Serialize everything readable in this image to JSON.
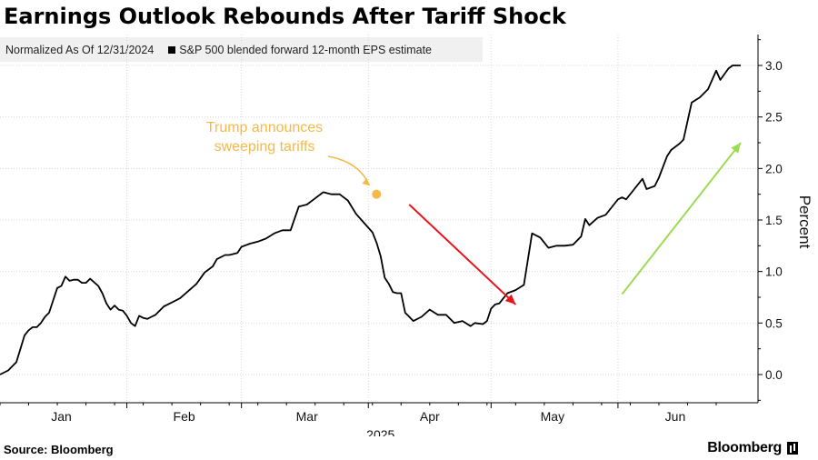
{
  "title": "Earnings Outlook Rebounds After Tariff Shock",
  "legend": {
    "normalization": "Normalized As Of 12/31/2024",
    "series_label": "S&P 500 blended forward 12-month EPS estimate"
  },
  "footer": {
    "source": "Source: Bloomberg",
    "brand": "Bloomberg"
  },
  "colors": {
    "line": "#000000",
    "annotation_orange": "#f5b94a",
    "arrow_red": "#e8141e",
    "arrow_green": "#9bdc52",
    "grid": "#d7d7d7"
  },
  "chart_data": {
    "type": "line",
    "title": "Earnings Outlook Rebounds After Tariff Shock",
    "ylabel": "Percent",
    "xlabel": "2025",
    "ylim": [
      -0.3,
      3.3
    ],
    "yticks": [
      "3.0",
      "2.5",
      "2.0",
      "1.5",
      "1.0",
      "0.5",
      "0.0"
    ],
    "ytick_values": [
      3.0,
      2.5,
      2.0,
      1.5,
      1.0,
      0.5,
      0.0
    ],
    "xlim": [
      "2024-12-31",
      "2025-06-30"
    ],
    "month_labels": [
      "Jan",
      "Feb",
      "Mar",
      "Apr",
      "May",
      "Jun"
    ],
    "month_label_dates": [
      "2025-01-15",
      "2025-02-14",
      "2025-03-16",
      "2025-04-15",
      "2025-05-15",
      "2025-06-14"
    ],
    "month_boundaries": [
      "2025-01-31",
      "2025-02-28",
      "2025-03-31",
      "2025-04-30",
      "2025-05-31"
    ],
    "year_label": "2025",
    "grid": true,
    "series": [
      {
        "name": "S&P 500 blended forward 12-month EPS estimate",
        "x": [
          "2024-12-31",
          "2025-01-02",
          "2025-01-03",
          "2025-01-04",
          "2025-01-05",
          "2025-01-06",
          "2025-01-07",
          "2025-01-08",
          "2025-01-09",
          "2025-01-10",
          "2025-01-11",
          "2025-01-12",
          "2025-01-13",
          "2025-01-14",
          "2025-01-15",
          "2025-01-16",
          "2025-01-17",
          "2025-01-18",
          "2025-01-19",
          "2025-01-20",
          "2025-01-21",
          "2025-01-22",
          "2025-01-24",
          "2025-01-25",
          "2025-01-26",
          "2025-01-27",
          "2025-01-28",
          "2025-01-29",
          "2025-01-30",
          "2025-01-31",
          "2025-02-01",
          "2025-02-02",
          "2025-02-03",
          "2025-02-04",
          "2025-02-05",
          "2025-02-06",
          "2025-02-07",
          "2025-02-09",
          "2025-02-11",
          "2025-02-13",
          "2025-02-15",
          "2025-02-17",
          "2025-02-19",
          "2025-02-21",
          "2025-02-22",
          "2025-02-24",
          "2025-02-25",
          "2025-02-27",
          "2025-02-28",
          "2025-03-02",
          "2025-03-04",
          "2025-03-06",
          "2025-03-08",
          "2025-03-10",
          "2025-03-12",
          "2025-03-14",
          "2025-03-16",
          "2025-03-18",
          "2025-03-20",
          "2025-03-22",
          "2025-03-24",
          "2025-03-26",
          "2025-03-28",
          "2025-03-30",
          "2025-04-01",
          "2025-04-02",
          "2025-04-03",
          "2025-04-04",
          "2025-04-05",
          "2025-04-06",
          "2025-04-07",
          "2025-04-08",
          "2025-04-09",
          "2025-04-10",
          "2025-04-11",
          "2025-04-13",
          "2025-04-15",
          "2025-04-17",
          "2025-04-19",
          "2025-04-21",
          "2025-04-23",
          "2025-04-25",
          "2025-04-26",
          "2025-04-28",
          "2025-04-29",
          "2025-04-30",
          "2025-05-01",
          "2025-05-02",
          "2025-05-04",
          "2025-05-06",
          "2025-05-08",
          "2025-05-10",
          "2025-05-12",
          "2025-05-14",
          "2025-05-16",
          "2025-05-18",
          "2025-05-20",
          "2025-05-22",
          "2025-05-23",
          "2025-05-24",
          "2025-05-26",
          "2025-05-28",
          "2025-05-30",
          "2025-05-31",
          "2025-06-01",
          "2025-06-02",
          "2025-06-04",
          "2025-06-06",
          "2025-06-07",
          "2025-06-09",
          "2025-06-10",
          "2025-06-12",
          "2025-06-13",
          "2025-06-15",
          "2025-06-16",
          "2025-06-18",
          "2025-06-20",
          "2025-06-22",
          "2025-06-24",
          "2025-06-25",
          "2025-06-27",
          "2025-06-28",
          "2025-06-29",
          "2025-06-30"
        ],
        "y": [
          0.0,
          0.04,
          0.08,
          0.12,
          0.25,
          0.38,
          0.43,
          0.46,
          0.46,
          0.5,
          0.56,
          0.6,
          0.72,
          0.84,
          0.86,
          0.95,
          0.91,
          0.92,
          0.92,
          0.89,
          0.89,
          0.93,
          0.86,
          0.79,
          0.69,
          0.63,
          0.67,
          0.63,
          0.62,
          0.57,
          0.5,
          0.47,
          0.57,
          0.55,
          0.54,
          0.56,
          0.58,
          0.66,
          0.7,
          0.74,
          0.81,
          0.88,
          0.99,
          1.05,
          1.12,
          1.16,
          1.16,
          1.18,
          1.24,
          1.27,
          1.29,
          1.32,
          1.37,
          1.4,
          1.4,
          1.63,
          1.65,
          1.71,
          1.77,
          1.75,
          1.75,
          1.69,
          1.56,
          1.47,
          1.38,
          1.28,
          1.15,
          0.94,
          0.88,
          0.8,
          0.79,
          0.79,
          0.6,
          0.56,
          0.52,
          0.56,
          0.63,
          0.58,
          0.58,
          0.5,
          0.52,
          0.47,
          0.5,
          0.49,
          0.52,
          0.64,
          0.68,
          0.69,
          0.79,
          0.82,
          0.87,
          1.37,
          1.33,
          1.23,
          1.25,
          1.25,
          1.26,
          1.34,
          1.51,
          1.45,
          1.52,
          1.55,
          1.65,
          1.7,
          1.72,
          1.7,
          1.8,
          1.9,
          1.8,
          1.83,
          1.91,
          2.12,
          2.18,
          2.24,
          2.28,
          2.64,
          2.69,
          2.77,
          2.95,
          2.86,
          2.97,
          3.0,
          3.0,
          3.0
        ]
      }
    ],
    "annotations": [
      {
        "text_lines": [
          "Trump announces",
          "sweeping tariffs"
        ],
        "date": "2025-04-02",
        "value": 1.75
      },
      {
        "type": "arrow",
        "color": "red",
        "from": [
          "2025-04-10",
          1.65
        ],
        "to": [
          "2025-05-06",
          0.68
        ]
      },
      {
        "type": "arrow",
        "color": "green",
        "from": [
          "2025-06-01",
          0.78
        ],
        "to": [
          "2025-06-30",
          2.25
        ]
      }
    ]
  }
}
